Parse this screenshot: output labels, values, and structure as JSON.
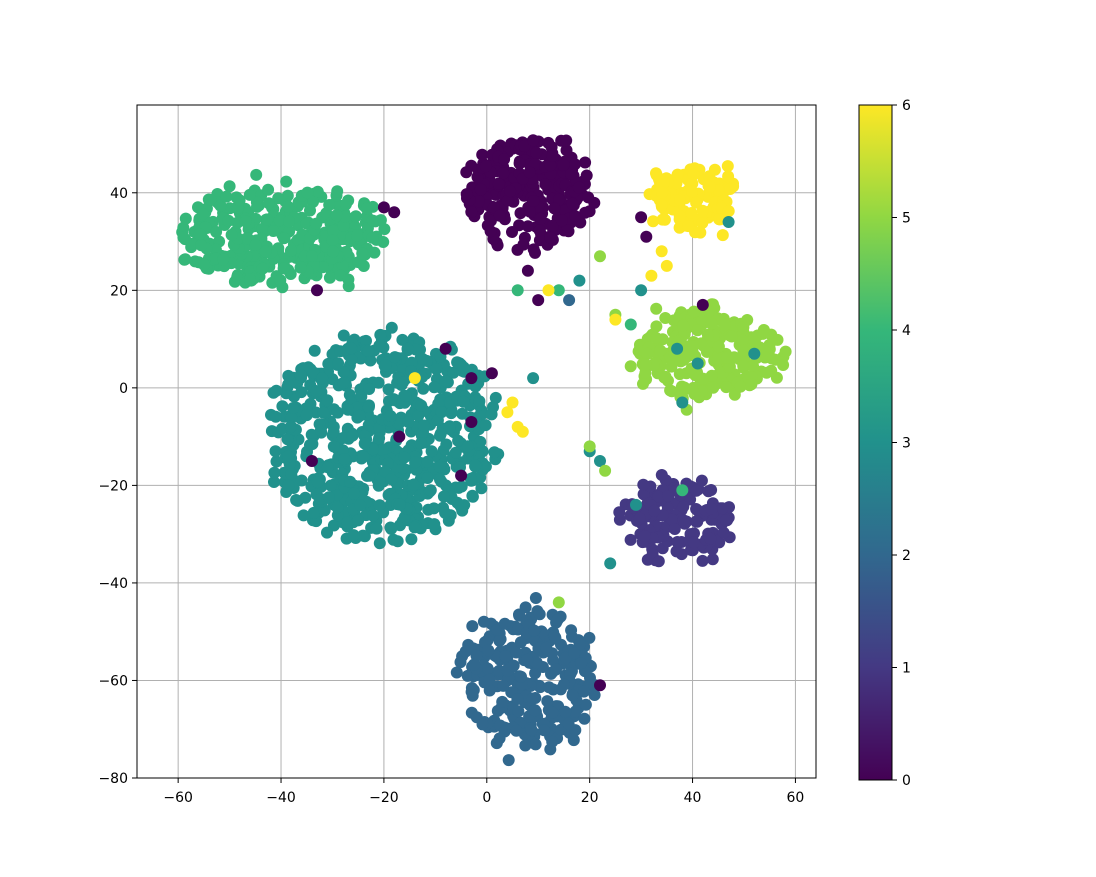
{
  "chart_data": {
    "type": "scatter",
    "title": "",
    "xlabel": "",
    "ylabel": "",
    "xlim": [
      -68,
      64
    ],
    "ylim": [
      -80,
      58
    ],
    "grid": true,
    "x_ticks": [
      -60,
      -40,
      -20,
      0,
      20,
      40,
      60
    ],
    "x_tick_labels": [
      "−60",
      "−40",
      "−20",
      "0",
      "20",
      "40",
      "60"
    ],
    "y_ticks": [
      -80,
      -60,
      -40,
      -20,
      0,
      20,
      40
    ],
    "y_tick_labels": [
      "−80",
      "−60",
      "−40",
      "−20",
      "0",
      "20",
      "40"
    ],
    "colorbar": {
      "colormap": "viridis",
      "range": [
        0,
        6
      ],
      "ticks": [
        0,
        1,
        2,
        3,
        4,
        5,
        6
      ],
      "tick_labels": [
        "0",
        "1",
        "2",
        "3",
        "4",
        "5",
        "6"
      ]
    },
    "clusters": [
      {
        "label": 0,
        "color": "#440154",
        "center": [
          8,
          40
        ],
        "radius": [
          12,
          11
        ],
        "count": 260
      },
      {
        "label": 1,
        "color": "#443983",
        "center": [
          37,
          -27
        ],
        "radius": [
          10,
          8
        ],
        "count": 150
      },
      {
        "label": 2,
        "color": "#31688e",
        "center": [
          8,
          -60
        ],
        "radius": [
          13,
          14
        ],
        "count": 280
      },
      {
        "label": 3,
        "color": "#21918c",
        "center": [
          -20,
          -10
        ],
        "radius": [
          22,
          21
        ],
        "count": 650
      },
      {
        "label": 4,
        "color": "#35b779",
        "center": [
          -40,
          31
        ],
        "radius": [
          20,
          10
        ],
        "count": 330
      },
      {
        "label": 5,
        "color": "#90d743",
        "center": [
          43,
          7
        ],
        "radius": [
          14,
          9
        ],
        "count": 260
      },
      {
        "label": 6,
        "color": "#fde725",
        "center": [
          40,
          39
        ],
        "radius": [
          8,
          6
        ],
        "count": 120
      }
    ],
    "scattered_points": [
      {
        "x": 18,
        "y": 22,
        "c": 3
      },
      {
        "x": 14,
        "y": 20,
        "c": 4
      },
      {
        "x": 22,
        "y": 27,
        "c": 5
      },
      {
        "x": 10,
        "y": 18,
        "c": 0
      },
      {
        "x": 12,
        "y": 20,
        "c": 6
      },
      {
        "x": 16,
        "y": 18,
        "c": 2
      },
      {
        "x": 6,
        "y": 20,
        "c": 4
      },
      {
        "x": 8,
        "y": 24,
        "c": 0
      },
      {
        "x": 25,
        "y": 15,
        "c": 5
      },
      {
        "x": 28,
        "y": 13,
        "c": 4
      },
      {
        "x": 30,
        "y": 20,
        "c": 3
      },
      {
        "x": 32,
        "y": 23,
        "c": 6
      },
      {
        "x": 35,
        "y": 25,
        "c": 6
      },
      {
        "x": 25,
        "y": 14,
        "c": 6
      },
      {
        "x": 30,
        "y": 35,
        "c": 0
      },
      {
        "x": 31,
        "y": 31,
        "c": 0
      },
      {
        "x": 5,
        "y": -3,
        "c": 6
      },
      {
        "x": 6,
        "y": -8,
        "c": 6
      },
      {
        "x": 7,
        "y": -9,
        "c": 6
      },
      {
        "x": 4,
        "y": -5,
        "c": 6
      },
      {
        "x": 9,
        "y": 2,
        "c": 3
      },
      {
        "x": 20,
        "y": -13,
        "c": 3
      },
      {
        "x": 22,
        "y": -15,
        "c": 3
      },
      {
        "x": 20,
        "y": -12,
        "c": 5
      },
      {
        "x": 23,
        "y": -17,
        "c": 5
      },
      {
        "x": 24,
        "y": -36,
        "c": 3
      },
      {
        "x": 22,
        "y": -61,
        "c": 0
      },
      {
        "x": 14,
        "y": -44,
        "c": 5
      },
      {
        "x": -20,
        "y": 37,
        "c": 0
      },
      {
        "x": -18,
        "y": 36,
        "c": 0
      },
      {
        "x": -33,
        "y": 20,
        "c": 0
      },
      {
        "x": 47,
        "y": 34,
        "c": 3
      },
      {
        "x": 42,
        "y": 17,
        "c": 0
      },
      {
        "x": 34,
        "y": 28,
        "c": 6
      },
      {
        "x": -8,
        "y": 8,
        "c": 0
      },
      {
        "x": -3,
        "y": 2,
        "c": 0
      },
      {
        "x": 1,
        "y": 3,
        "c": 0
      },
      {
        "x": -14,
        "y": 2,
        "c": 6
      },
      {
        "x": -5,
        "y": -18,
        "c": 0
      },
      {
        "x": -34,
        "y": -15,
        "c": 0
      },
      {
        "x": -17,
        "y": -10,
        "c": 0
      },
      {
        "x": -3,
        "y": -7,
        "c": 0
      },
      {
        "x": 37,
        "y": 8,
        "c": 3
      },
      {
        "x": 41,
        "y": 5,
        "c": 3
      },
      {
        "x": 52,
        "y": 7,
        "c": 3
      },
      {
        "x": 38,
        "y": -3,
        "c": 3
      },
      {
        "x": 29,
        "y": -24,
        "c": 3
      },
      {
        "x": 38,
        "y": -21,
        "c": 4
      }
    ]
  }
}
